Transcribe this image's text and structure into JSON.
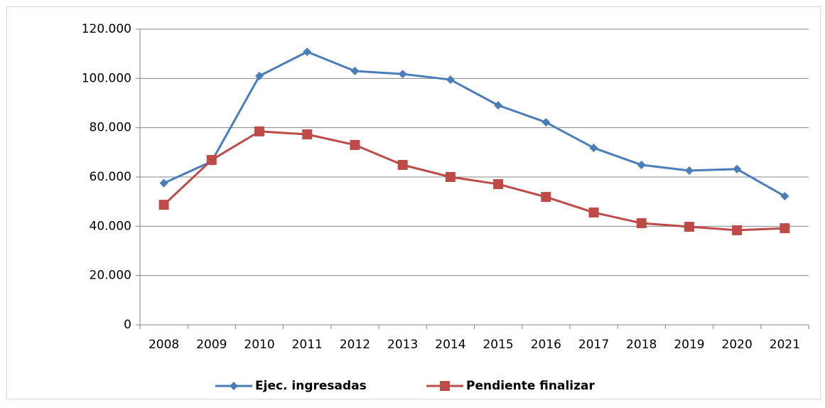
{
  "chart_data": {
    "type": "line",
    "categories": [
      "2008",
      "2009",
      "2010",
      "2011",
      "2012",
      "2013",
      "2014",
      "2015",
      "2016",
      "2017",
      "2018",
      "2019",
      "2020",
      "2021"
    ],
    "series": [
      {
        "name": "Ejec. ingresadas",
        "color": "#4a7ebb",
        "marker": "diamond",
        "values": [
          57500,
          66300,
          101000,
          110800,
          103000,
          101800,
          99500,
          89100,
          82200,
          71800,
          64900,
          62600,
          63200,
          52200
        ]
      },
      {
        "name": "Pendiente finalizar",
        "color": "#be4b48",
        "marker": "square",
        "values": [
          48700,
          66900,
          78500,
          77300,
          73000,
          64900,
          60000,
          57100,
          51900,
          45600,
          41250,
          39800,
          38400,
          39200
        ]
      }
    ],
    "ylim": [
      0,
      120000
    ],
    "yticks": [
      0,
      {
        "value": 20000,
        "label": "20.000"
      },
      {
        "value": 40000,
        "label": "40.000"
      },
      {
        "value": 60000,
        "label": "60.000"
      },
      {
        "value": 80000,
        "label": "80.000"
      },
      {
        "value": 100000,
        "label": "100.000"
      },
      {
        "value": 120000,
        "label": "120.000"
      }
    ],
    "grid": true,
    "legend": "bottom"
  }
}
